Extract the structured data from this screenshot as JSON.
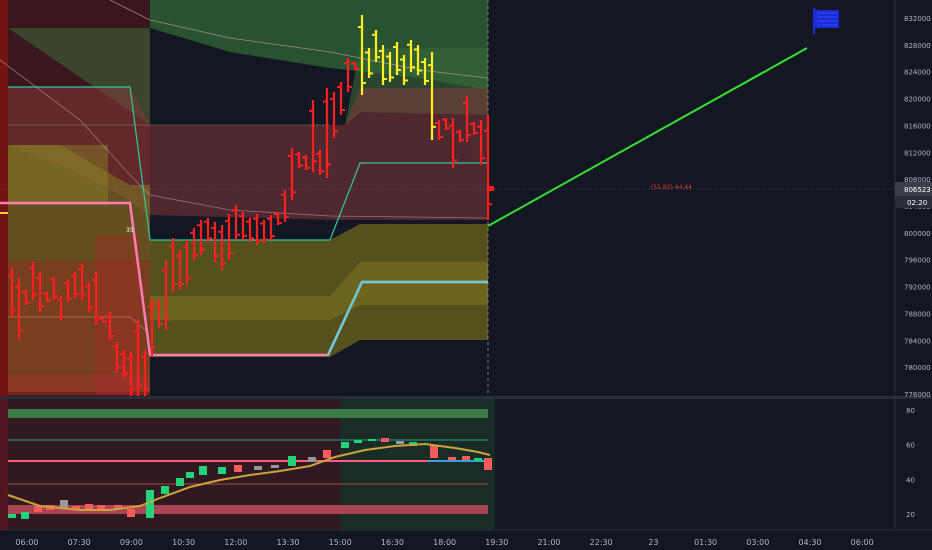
{
  "chart_data": {
    "type": "candlestick",
    "main": {
      "price_axis": {
        "ticks": [
          "832000",
          "828000",
          "824000",
          "820000",
          "816000",
          "812000",
          "808000",
          "804000",
          "800000",
          "796000",
          "792000",
          "788000",
          "784000",
          "780000",
          "776000"
        ],
        "ylim": [
          775400,
          833500
        ]
      },
      "last_price": "806523",
      "countdown": "02:20",
      "projection_label": "(51.82) 44.44",
      "mid_label": "35",
      "colors": {
        "bear": "#ff1f1f",
        "bull": "#ffee22",
        "green_band": "#2e6b3a",
        "olive_band": "#7a7a1a",
        "pink_line": "#ff7bb2",
        "cyan_line": "#6bc9d8",
        "teal_line": "#2ec9a0",
        "projection": "#33e033",
        "flag": "#1a2bd9"
      }
    },
    "oscillator": {
      "ticks": [
        "80",
        "60",
        "40",
        "20"
      ],
      "ylim": [
        12,
        86
      ],
      "levels": [
        62,
        50,
        38
      ]
    },
    "time_axis": [
      "06:00",
      "07:30",
      "09:00",
      "10:30",
      "12:00",
      "13:30",
      "15:00",
      "16:30",
      "18:00",
      "19:30",
      "21:00",
      "22:30",
      "23",
      "01:30",
      "03:00",
      "04:30",
      "06:00"
    ]
  }
}
